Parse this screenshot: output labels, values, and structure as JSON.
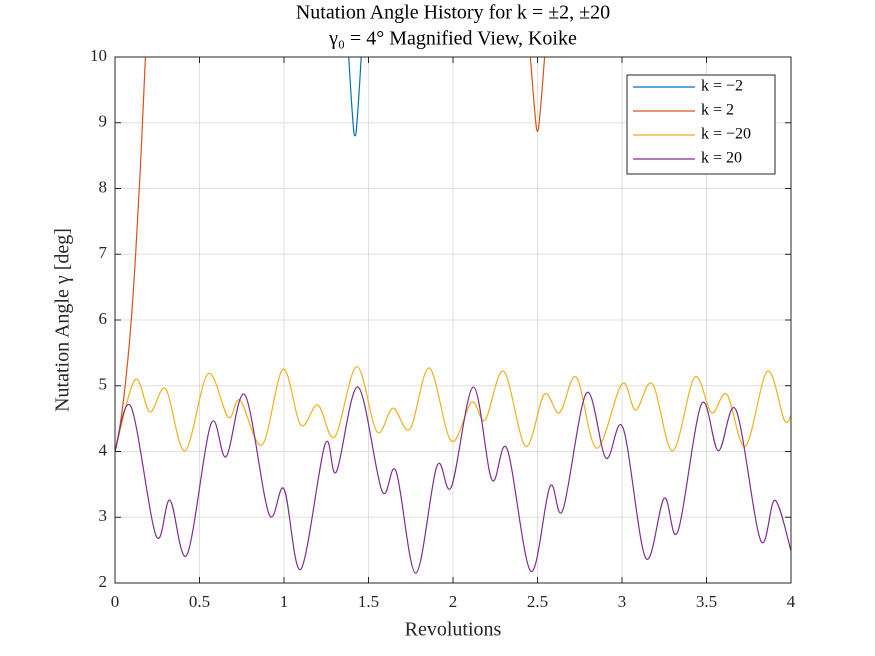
{
  "chart_data": {
    "type": "line",
    "title": "Nutation Angle History for k = ±2, ±20",
    "subtitle": "γ₀ = 4° Magnified View, Koike",
    "x_label": "Revolutions",
    "y_label": "Nutation Angle γ [deg]",
    "xlim": [
      0,
      4
    ],
    "ylim": [
      2,
      10
    ],
    "xticks": [
      0,
      0.5,
      1,
      1.5,
      2,
      2.5,
      3,
      3.5,
      4
    ],
    "yticks": [
      2,
      3,
      4,
      5,
      6,
      7,
      8,
      9,
      10
    ],
    "grid": true,
    "legend": "northeast",
    "series": [
      {
        "name": "k = −2",
        "color": "#0072BD",
        "x": [
          1.37,
          1.39,
          1.41,
          1.42,
          1.43,
          1.45,
          1.47
        ],
        "values": [
          10.6,
          9.7,
          8.95,
          8.8,
          8.95,
          9.7,
          10.6
        ]
      },
      {
        "name": "k = 2",
        "color": "#D95319",
        "x": [
          0,
          0.03,
          0.06,
          0.09,
          0.12,
          0.15,
          0.18,
          0.2,
          null,
          2.44,
          2.47,
          2.49,
          2.5,
          2.51,
          2.53,
          2.56
        ],
        "values": [
          4,
          4.4,
          5.0,
          5.8,
          6.9,
          8.3,
          10.0,
          11,
          null,
          10.6,
          9.6,
          9.0,
          8.87,
          9.0,
          9.6,
          10.6
        ]
      },
      {
        "name": "k = −20",
        "color": "#EDB120",
        "x": [
          0,
          0.118,
          0.207,
          0.3,
          0.414,
          0.55,
          0.67,
          0.74,
          0.87,
          0.994,
          1.1,
          1.2,
          1.3,
          1.43,
          1.55,
          1.645,
          1.745,
          1.86,
          1.99,
          2.11,
          2.19,
          2.3,
          2.43,
          2.54,
          2.63,
          2.73,
          2.85,
          3.0,
          3.08,
          3.18,
          3.3,
          3.43,
          3.53,
          3.62,
          3.73,
          3.86,
          3.96,
          4.0
        ],
        "values": [
          4.0,
          5.09,
          4.6,
          4.95,
          4.01,
          5.18,
          4.52,
          4.78,
          4.1,
          5.25,
          4.4,
          4.71,
          4.22,
          5.29,
          4.3,
          4.66,
          4.34,
          5.27,
          4.16,
          4.75,
          4.48,
          5.22,
          4.08,
          4.87,
          4.59,
          5.13,
          4.05,
          5.03,
          4.63,
          5.03,
          4.01,
          5.13,
          4.59,
          4.87,
          4.08,
          5.22,
          4.48,
          4.55
        ]
      },
      {
        "name": "k = 20",
        "color": "#7E2F8E",
        "x": [
          0,
          0.095,
          0.243,
          0.325,
          0.426,
          0.568,
          0.657,
          0.769,
          0.911,
          1.0,
          1.1,
          1.243,
          1.31,
          1.438,
          1.58,
          1.663,
          1.78,
          1.905,
          1.99,
          2.12,
          2.23,
          2.32,
          2.46,
          2.574,
          2.65,
          2.79,
          2.905,
          3.006,
          3.14,
          3.25,
          3.33,
          3.47,
          3.57,
          3.675,
          3.82,
          3.905,
          4.0
        ],
        "values": [
          4.0,
          4.68,
          2.72,
          3.26,
          2.43,
          4.42,
          3.92,
          4.86,
          3.05,
          3.43,
          2.21,
          4.11,
          3.69,
          4.98,
          3.4,
          3.7,
          2.15,
          3.78,
          3.46,
          4.98,
          3.57,
          4.04,
          2.18,
          3.47,
          3.11,
          4.89,
          3.9,
          4.36,
          2.38,
          3.29,
          2.78,
          4.72,
          4.01,
          4.63,
          2.65,
          3.26,
          2.49
        ]
      }
    ]
  }
}
